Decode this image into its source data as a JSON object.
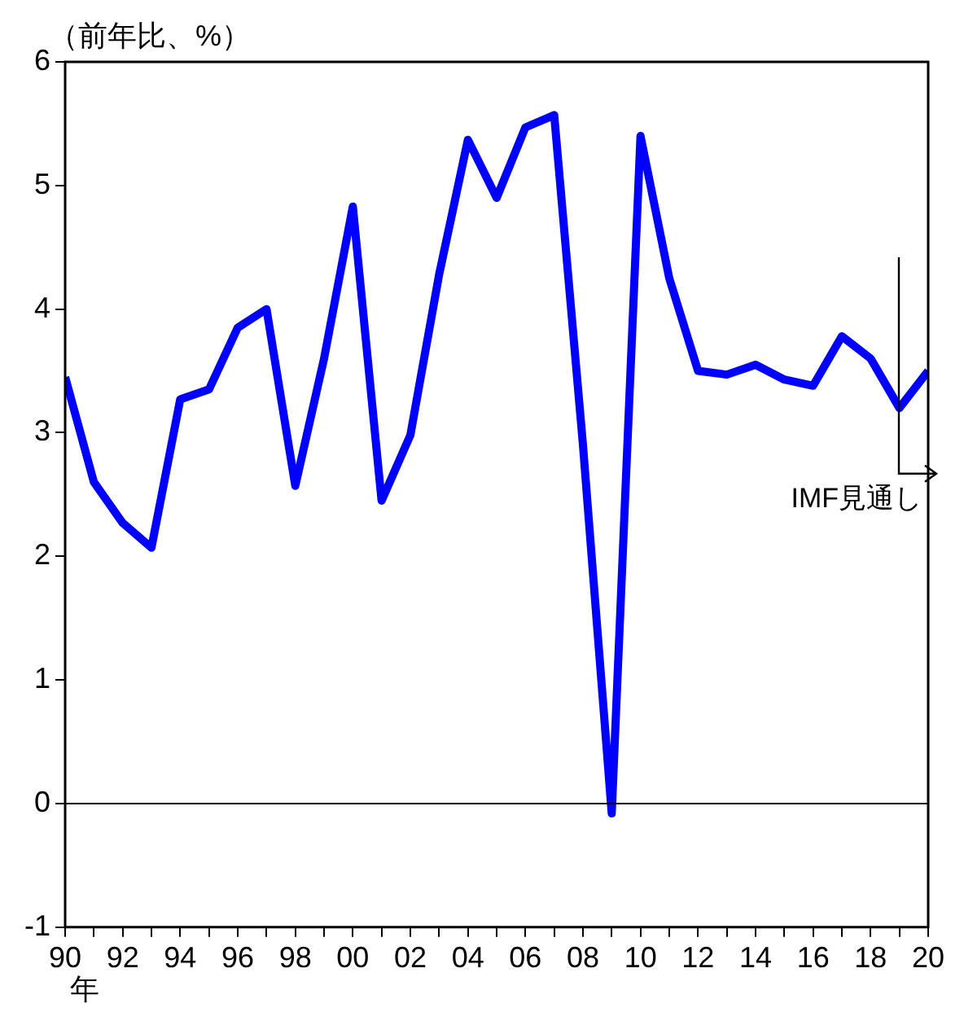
{
  "chart_data": {
    "type": "line",
    "ylabel": "（前年比、%）",
    "xlabel": "年",
    "x": [
      1990,
      1991,
      1992,
      1993,
      1994,
      1995,
      1996,
      1997,
      1998,
      1999,
      2000,
      2001,
      2002,
      2003,
      2004,
      2005,
      2006,
      2007,
      2008,
      2009,
      2010,
      2011,
      2012,
      2013,
      2014,
      2015,
      2016,
      2017,
      2018,
      2019,
      2020
    ],
    "series": [
      {
        "color": "#0000ff",
        "values": [
          3.45,
          2.6,
          2.27,
          2.07,
          3.27,
          3.35,
          3.85,
          4.0,
          2.57,
          3.6,
          4.83,
          2.45,
          2.98,
          4.28,
          5.37,
          4.9,
          5.47,
          5.57,
          2.9,
          -0.08,
          5.4,
          4.25,
          3.5,
          3.47,
          3.55,
          3.43,
          3.38,
          3.78,
          3.6,
          3.2,
          3.5
        ]
      }
    ],
    "xlim": [
      1990,
      2020
    ],
    "xticks": [
      {
        "value": 1990,
        "label": "90"
      },
      {
        "value": 1991,
        "label": null
      },
      {
        "value": 1992,
        "label": "92"
      },
      {
        "value": 1993,
        "label": null
      },
      {
        "value": 1994,
        "label": "94"
      },
      {
        "value": 1995,
        "label": null
      },
      {
        "value": 1996,
        "label": "96"
      },
      {
        "value": 1997,
        "label": null
      },
      {
        "value": 1998,
        "label": "98"
      },
      {
        "value": 1999,
        "label": null
      },
      {
        "value": 2000,
        "label": "00"
      },
      {
        "value": 2001,
        "label": null
      },
      {
        "value": 2002,
        "label": "02"
      },
      {
        "value": 2003,
        "label": null
      },
      {
        "value": 2004,
        "label": "04"
      },
      {
        "value": 2005,
        "label": null
      },
      {
        "value": 2006,
        "label": "06"
      },
      {
        "value": 2007,
        "label": null
      },
      {
        "value": 2008,
        "label": "08"
      },
      {
        "value": 2009,
        "label": null
      },
      {
        "value": 2010,
        "label": "10"
      },
      {
        "value": 2011,
        "label": null
      },
      {
        "value": 2012,
        "label": "12"
      },
      {
        "value": 2013,
        "label": null
      },
      {
        "value": 2014,
        "label": "14"
      },
      {
        "value": 2015,
        "label": null
      },
      {
        "value": 2016,
        "label": "16"
      },
      {
        "value": 2017,
        "label": null
      },
      {
        "value": 2018,
        "label": "18"
      },
      {
        "value": 2019,
        "label": null
      },
      {
        "value": 2020,
        "label": "20"
      }
    ],
    "ylim": [
      -1,
      6
    ],
    "yticks": [
      -1,
      0,
      1,
      2,
      3,
      4,
      5,
      6
    ],
    "ref_lines": [
      {
        "axis": "y",
        "value": 0,
        "color": "#000000"
      }
    ],
    "annotations": [
      "IMF見通し"
    ],
    "grid": false,
    "legend": false,
    "marker": "none",
    "line_style": "solid"
  }
}
